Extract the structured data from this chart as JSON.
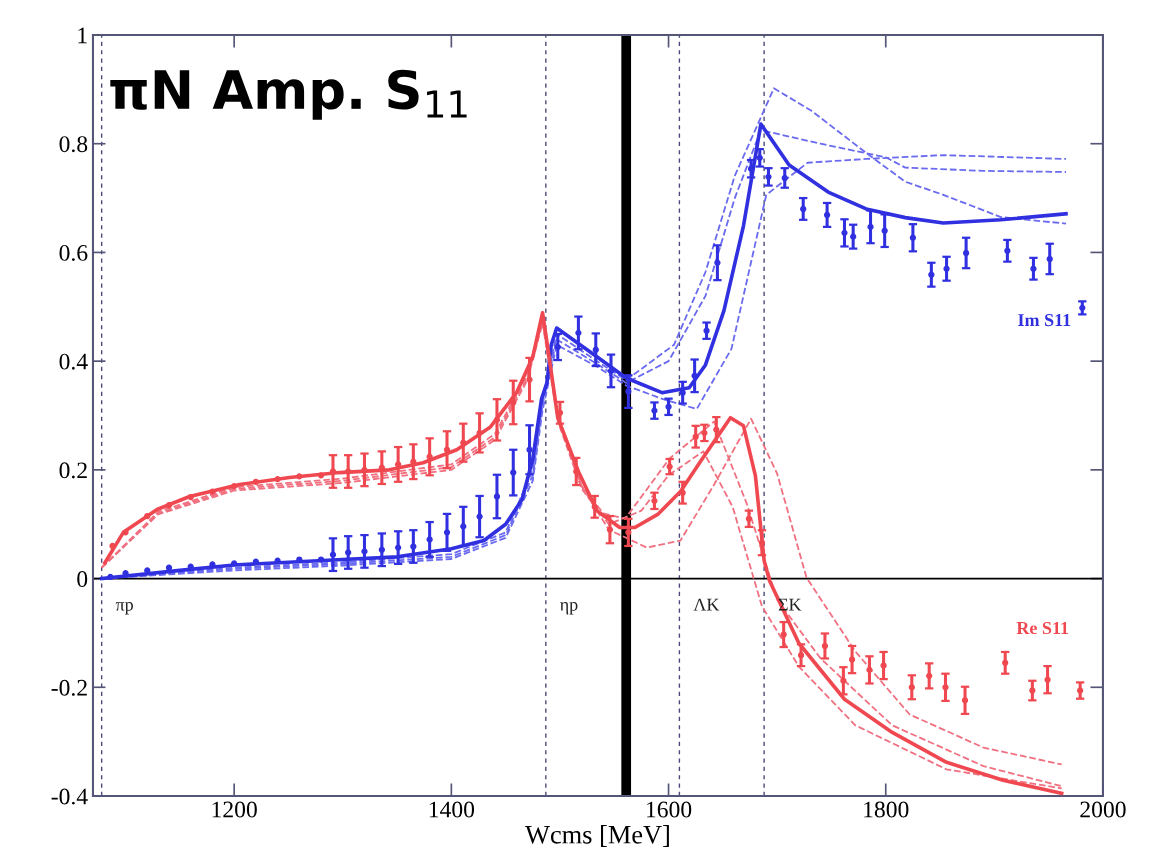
{
  "chart_data": {
    "type": "line",
    "title": "πN Amp. S$_{11}$",
    "xlabel": "Wcms [MeV]",
    "xlim": [
      1070,
      2000
    ],
    "xticks": [
      1200,
      1400,
      1600,
      1800,
      2000
    ],
    "ylim": [
      -0.4,
      1
    ],
    "yticks": [
      -0.4,
      -0.2,
      0,
      0.2,
      0.4,
      0.6,
      0.8,
      1
    ],
    "ref_lines": [
      {
        "axis": "x",
        "value": 1078,
        "label": "πp",
        "color": "#4a4a7a",
        "line_style": "dashed"
      },
      {
        "axis": "x",
        "value": 1487,
        "label": "ηp",
        "color": "#4a4a7a",
        "line_style": "dashed"
      },
      {
        "axis": "x",
        "value": 1610,
        "label": "ΛK",
        "color": "#4a4a7a",
        "line_style": "dashed"
      },
      {
        "axis": "x",
        "value": 1688,
        "label": "ΣK",
        "color": "#4a4a7a",
        "line_style": "dashed"
      },
      {
        "axis": "x",
        "value": 1561,
        "label": null,
        "color": "#000000",
        "line_style": "solid"
      },
      {
        "axis": "y",
        "value": 0,
        "label": null,
        "color": "#000000",
        "line_style": "solid"
      }
    ],
    "series": [
      {
        "line_style": "dashed",
        "color": "#6a6af0",
        "x": [
          1078,
          1200,
          1300,
          1400,
          1450,
          1475,
          1484,
          1497,
          1534,
          1561,
          1605,
          1634,
          1661,
          1697,
          1732,
          1782,
          1818,
          1853,
          1906,
          1966
        ],
        "values": [
          0,
          0.02,
          0.03,
          0.045,
          0.085,
          0.2,
          0.33,
          0.45,
          0.4,
          0.365,
          0.43,
          0.564,
          0.741,
          0.902,
          0.86,
          0.783,
          0.73,
          0.706,
          0.665,
          0.653
        ]
      },
      {
        "line_style": "dashed",
        "color": "#6a6af0",
        "x": [
          1078,
          1200,
          1300,
          1400,
          1450,
          1475,
          1484,
          1497,
          1534,
          1561,
          1600,
          1634,
          1661,
          1685,
          1740,
          1800,
          1818,
          1890,
          1966
        ],
        "values": [
          0,
          0.018,
          0.027,
          0.04,
          0.08,
          0.19,
          0.32,
          0.44,
          0.395,
          0.36,
          0.4,
          0.52,
          0.7,
          0.825,
          0.8,
          0.775,
          0.756,
          0.75,
          0.748
        ]
      },
      {
        "line_style": "dashed",
        "color": "#6a6af0",
        "x": [
          1078,
          1200,
          1300,
          1400,
          1450,
          1475,
          1484,
          1497,
          1534,
          1561,
          1595,
          1626,
          1658,
          1690,
          1728,
          1782,
          1853,
          1966
        ],
        "values": [
          0,
          0.015,
          0.024,
          0.036,
          0.075,
          0.18,
          0.31,
          0.43,
          0.39,
          0.355,
          0.33,
          0.312,
          0.423,
          0.706,
          0.765,
          0.772,
          0.779,
          0.772
        ]
      },
      {
        "line_style": "dashed",
        "color": "#f07080",
        "x": [
          1078,
          1130,
          1200,
          1300,
          1400,
          1440,
          1470,
          1484,
          1498,
          1520,
          1545,
          1580,
          1611,
          1642,
          1676,
          1700,
          1727,
          1772,
          1822,
          1890,
          1962
        ],
        "values": [
          0.02,
          0.12,
          0.165,
          0.18,
          0.205,
          0.26,
          0.37,
          0.475,
          0.3,
          0.17,
          0.09,
          0.057,
          0.07,
          0.173,
          0.294,
          0.193,
          0.002,
          -0.134,
          -0.25,
          -0.311,
          -0.342
        ]
      },
      {
        "line_style": "dashed",
        "color": "#f07080",
        "x": [
          1078,
          1130,
          1200,
          1300,
          1400,
          1440,
          1470,
          1484,
          1498,
          1520,
          1540,
          1560,
          1601,
          1642,
          1672,
          1700,
          1740,
          1806,
          1890,
          1962
        ],
        "values": [
          0.02,
          0.123,
          0.168,
          0.184,
          0.21,
          0.266,
          0.375,
          0.48,
          0.3,
          0.17,
          0.12,
          0.11,
          0.221,
          0.289,
          0.138,
          -0.039,
          -0.147,
          -0.27,
          -0.345,
          -0.382
        ]
      },
      {
        "line_style": "dashed",
        "color": "#f07080",
        "x": [
          1078,
          1130,
          1200,
          1300,
          1400,
          1440,
          1470,
          1484,
          1498,
          1520,
          1545,
          1575,
          1600,
          1632,
          1659,
          1686,
          1720,
          1772,
          1856,
          1962
        ],
        "values": [
          0.02,
          0.118,
          0.162,
          0.176,
          0.2,
          0.255,
          0.365,
          0.47,
          0.29,
          0.165,
          0.1,
          0.125,
          0.19,
          0.234,
          0.132,
          -0.051,
          -0.162,
          -0.27,
          -0.351,
          -0.386
        ]
      },
      {
        "line_style": "solid",
        "color": "#3030e0",
        "x": [
          1078,
          1150,
          1200,
          1300,
          1350,
          1400,
          1430,
          1450,
          1465,
          1475,
          1483,
          1488,
          1492,
          1497,
          1534,
          1561,
          1594,
          1619,
          1634,
          1651,
          1669,
          1685,
          1711,
          1747,
          1782,
          1818,
          1853,
          1906,
          1966
        ],
        "values": [
          0,
          0.015,
          0.025,
          0.035,
          0.04,
          0.055,
          0.07,
          0.1,
          0.145,
          0.22,
          0.33,
          0.36,
          0.43,
          0.461,
          0.408,
          0.369,
          0.342,
          0.351,
          0.393,
          0.493,
          0.649,
          0.836,
          0.761,
          0.711,
          0.68,
          0.664,
          0.654,
          0.66,
          0.671
        ]
      },
      {
        "line_style": "solid",
        "color": "#f04850",
        "x": [
          1081,
          1098,
          1129,
          1159,
          1205,
          1251,
          1297,
          1343,
          1374,
          1405,
          1436,
          1460,
          1475,
          1484,
          1490,
          1498,
          1517,
          1534,
          1555,
          1569,
          1590,
          1611,
          1630,
          1657,
          1669,
          1680,
          1688,
          1693,
          1720,
          1762,
          1806,
          1856,
          1908,
          1962
        ],
        "values": [
          0.029,
          0.085,
          0.127,
          0.151,
          0.173,
          0.186,
          0.195,
          0.2,
          0.213,
          0.237,
          0.279,
          0.342,
          0.408,
          0.489,
          0.408,
          0.296,
          0.197,
          0.125,
          0.094,
          0.094,
          0.118,
          0.16,
          0.217,
          0.296,
          0.281,
          0.189,
          0.033,
          -0.004,
          -0.119,
          -0.222,
          -0.283,
          -0.338,
          -0.371,
          -0.395
        ]
      },
      {
        "type": "scatter",
        "name": "Im S11",
        "color": "#3030e0",
        "marker": "circle",
        "x": [
          1086,
          1100,
          1120,
          1140,
          1160,
          1180,
          1200,
          1220,
          1240,
          1260,
          1280,
          1291,
          1305,
          1320,
          1336,
          1351,
          1365,
          1380,
          1396,
          1411,
          1426,
          1442,
          1457,
          1472,
          1498,
          1517,
          1533,
          1547,
          1563,
          1587,
          1600,
          1613,
          1624,
          1635,
          1645,
          1676,
          1684,
          1692,
          1707,
          1724,
          1746,
          1762,
          1770,
          1786,
          1799,
          1825,
          1842,
          1856,
          1874,
          1912,
          1936,
          1951,
          1981
        ],
        "values": [
          0.003,
          0.01,
          0.015,
          0.02,
          0.022,
          0.026,
          0.028,
          0.031,
          0.033,
          0.035,
          0.035,
          0.044,
          0.048,
          0.05,
          0.053,
          0.057,
          0.059,
          0.072,
          0.085,
          0.096,
          0.114,
          0.151,
          0.195,
          0.237,
          0.426,
          0.452,
          0.421,
          0.382,
          0.344,
          0.309,
          0.316,
          0.342,
          0.373,
          0.456,
          0.581,
          0.754,
          0.774,
          0.739,
          0.737,
          0.68,
          0.669,
          0.636,
          0.629,
          0.647,
          0.64,
          0.627,
          0.559,
          0.57,
          0.599,
          0.603,
          0.57,
          0.588,
          0.498
        ],
        "errors": [
          null,
          null,
          null,
          null,
          null,
          null,
          null,
          null,
          null,
          null,
          null,
          0.03,
          0.03,
          0.03,
          0.03,
          0.03,
          0.03,
          0.032,
          0.034,
          0.036,
          0.038,
          0.04,
          0.042,
          0.045,
          0.024,
          0.03,
          0.03,
          0.03,
          0.03,
          0.015,
          0.015,
          0.02,
          0.03,
          0.015,
          0.032,
          0.016,
          0.016,
          0.016,
          0.018,
          0.02,
          0.022,
          0.025,
          0.022,
          0.03,
          0.03,
          0.025,
          0.022,
          0.022,
          0.028,
          0.02,
          0.02,
          0.028,
          0.012
        ]
      },
      {
        "type": "scatter",
        "name": "Re S11",
        "color": "#f04850",
        "marker": "circle",
        "x": [
          1088,
          1100,
          1120,
          1140,
          1160,
          1180,
          1200,
          1220,
          1240,
          1260,
          1280,
          1291,
          1305,
          1320,
          1336,
          1351,
          1365,
          1380,
          1396,
          1411,
          1426,
          1442,
          1457,
          1472,
          1500,
          1515,
          1532,
          1546,
          1563,
          1587,
          1601,
          1613,
          1625,
          1633,
          1644,
          1674,
          1686,
          1706,
          1722,
          1744,
          1761,
          1769,
          1785,
          1798,
          1824,
          1840,
          1855,
          1873,
          1910,
          1935,
          1949,
          1979
        ],
        "values": [
          0.06,
          0.085,
          0.115,
          0.135,
          0.15,
          0.16,
          0.17,
          0.178,
          0.183,
          0.188,
          0.19,
          0.197,
          0.197,
          0.2,
          0.204,
          0.21,
          0.215,
          0.224,
          0.237,
          0.25,
          0.268,
          0.292,
          0.324,
          0.366,
          0.305,
          0.197,
          0.132,
          0.09,
          0.085,
          0.143,
          0.206,
          0.158,
          0.261,
          0.268,
          0.274,
          0.11,
          0.066,
          -0.103,
          -0.141,
          -0.124,
          -0.188,
          -0.149,
          -0.168,
          -0.16,
          -0.2,
          -0.179,
          -0.2,
          -0.224,
          -0.155,
          -0.206,
          -0.186,
          -0.206
        ],
        "errors": [
          null,
          null,
          null,
          null,
          null,
          null,
          null,
          null,
          null,
          null,
          null,
          0.03,
          0.03,
          0.03,
          0.03,
          0.032,
          0.032,
          0.034,
          0.034,
          0.035,
          0.036,
          0.038,
          0.04,
          0.04,
          0.02,
          0.025,
          0.02,
          0.025,
          0.025,
          0.015,
          0.014,
          0.02,
          0.02,
          0.015,
          0.023,
          0.015,
          0.023,
          0.023,
          0.02,
          0.023,
          0.025,
          0.025,
          0.025,
          0.025,
          0.022,
          0.023,
          0.025,
          0.025,
          0.02,
          0.018,
          0.025,
          0.015
        ]
      }
    ]
  }
}
